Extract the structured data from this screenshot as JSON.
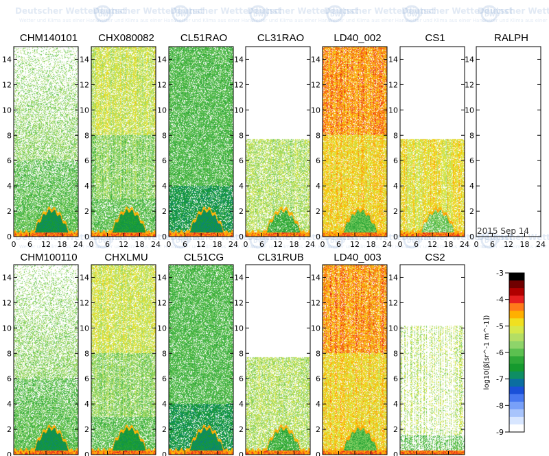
{
  "figure": {
    "type": "ceilometer backscatter quicklook grid",
    "date_label": "2015 Sep 14",
    "watermark": {
      "name": "Deutscher Wetterdienst",
      "tagline": "Wetter und Klima aus einer Hand",
      "logo": "DWD"
    }
  },
  "chart_data": {
    "type": "heatmap",
    "x_ticks": [
      0,
      6,
      12,
      18,
      24
    ],
    "y_ticks": [
      0,
      2,
      4,
      6,
      8,
      10,
      12,
      14
    ],
    "xlim": [
      0,
      24
    ],
    "ylim": [
      0,
      15
    ],
    "xlabel": "",
    "ylabel": "",
    "panels": [
      {
        "name": "CHM140101",
        "row": 1,
        "max_range_km": 15,
        "profile": "chm",
        "has_data": true
      },
      {
        "name": "CHX080082",
        "row": 1,
        "max_range_km": 15,
        "profile": "chx",
        "has_data": true
      },
      {
        "name": "CL51RAO",
        "row": 1,
        "max_range_km": 15,
        "profile": "cl51",
        "has_data": true
      },
      {
        "name": "CL31RAO",
        "row": 1,
        "max_range_km": 7.7,
        "profile": "cl31",
        "has_data": true
      },
      {
        "name": "LD40_002",
        "row": 1,
        "max_range_km": 15,
        "profile": "ld40",
        "has_data": true
      },
      {
        "name": "CS1",
        "row": 1,
        "max_range_km": 7.7,
        "profile": "cs1",
        "has_data": true
      },
      {
        "name": "RALPH",
        "row": 1,
        "max_range_km": 0,
        "profile": "none",
        "has_data": false
      },
      {
        "name": "CHM100110",
        "row": 2,
        "max_range_km": 15,
        "profile": "chm",
        "has_data": true
      },
      {
        "name": "CHXLMU",
        "row": 2,
        "max_range_km": 15,
        "profile": "chx2",
        "has_data": true
      },
      {
        "name": "CL51CG",
        "row": 2,
        "max_range_km": 15,
        "profile": "cl51",
        "has_data": true
      },
      {
        "name": "CL31RUB",
        "row": 2,
        "max_range_km": 7.7,
        "profile": "cl31",
        "has_data": true
      },
      {
        "name": "LD40_003",
        "row": 2,
        "max_range_km": 15,
        "profile": "ld40",
        "has_data": true
      },
      {
        "name": "CS2",
        "row": 2,
        "max_range_km": 10.2,
        "profile": "cs2",
        "has_data": true
      }
    ],
    "colorbar": {
      "label": "log10(β[sr^-1 m^-1])",
      "min": -9,
      "max": -3,
      "ticks": [
        -3,
        -4,
        -5,
        -6,
        -7,
        -8,
        -9
      ],
      "colors": [
        "#000000",
        "#700000",
        "#b00000",
        "#e62020",
        "#ff7a1a",
        "#ffb000",
        "#f0e020",
        "#d6e84a",
        "#b4de64",
        "#8ed46a",
        "#5cc050",
        "#2ea838",
        "#159a2e",
        "#0e8e64",
        "#0b6ea0",
        "#1a50d8",
        "#4878f0",
        "#78a0f8",
        "#a8c4fc",
        "#d8e6ff",
        "#ffffff"
      ]
    }
  }
}
